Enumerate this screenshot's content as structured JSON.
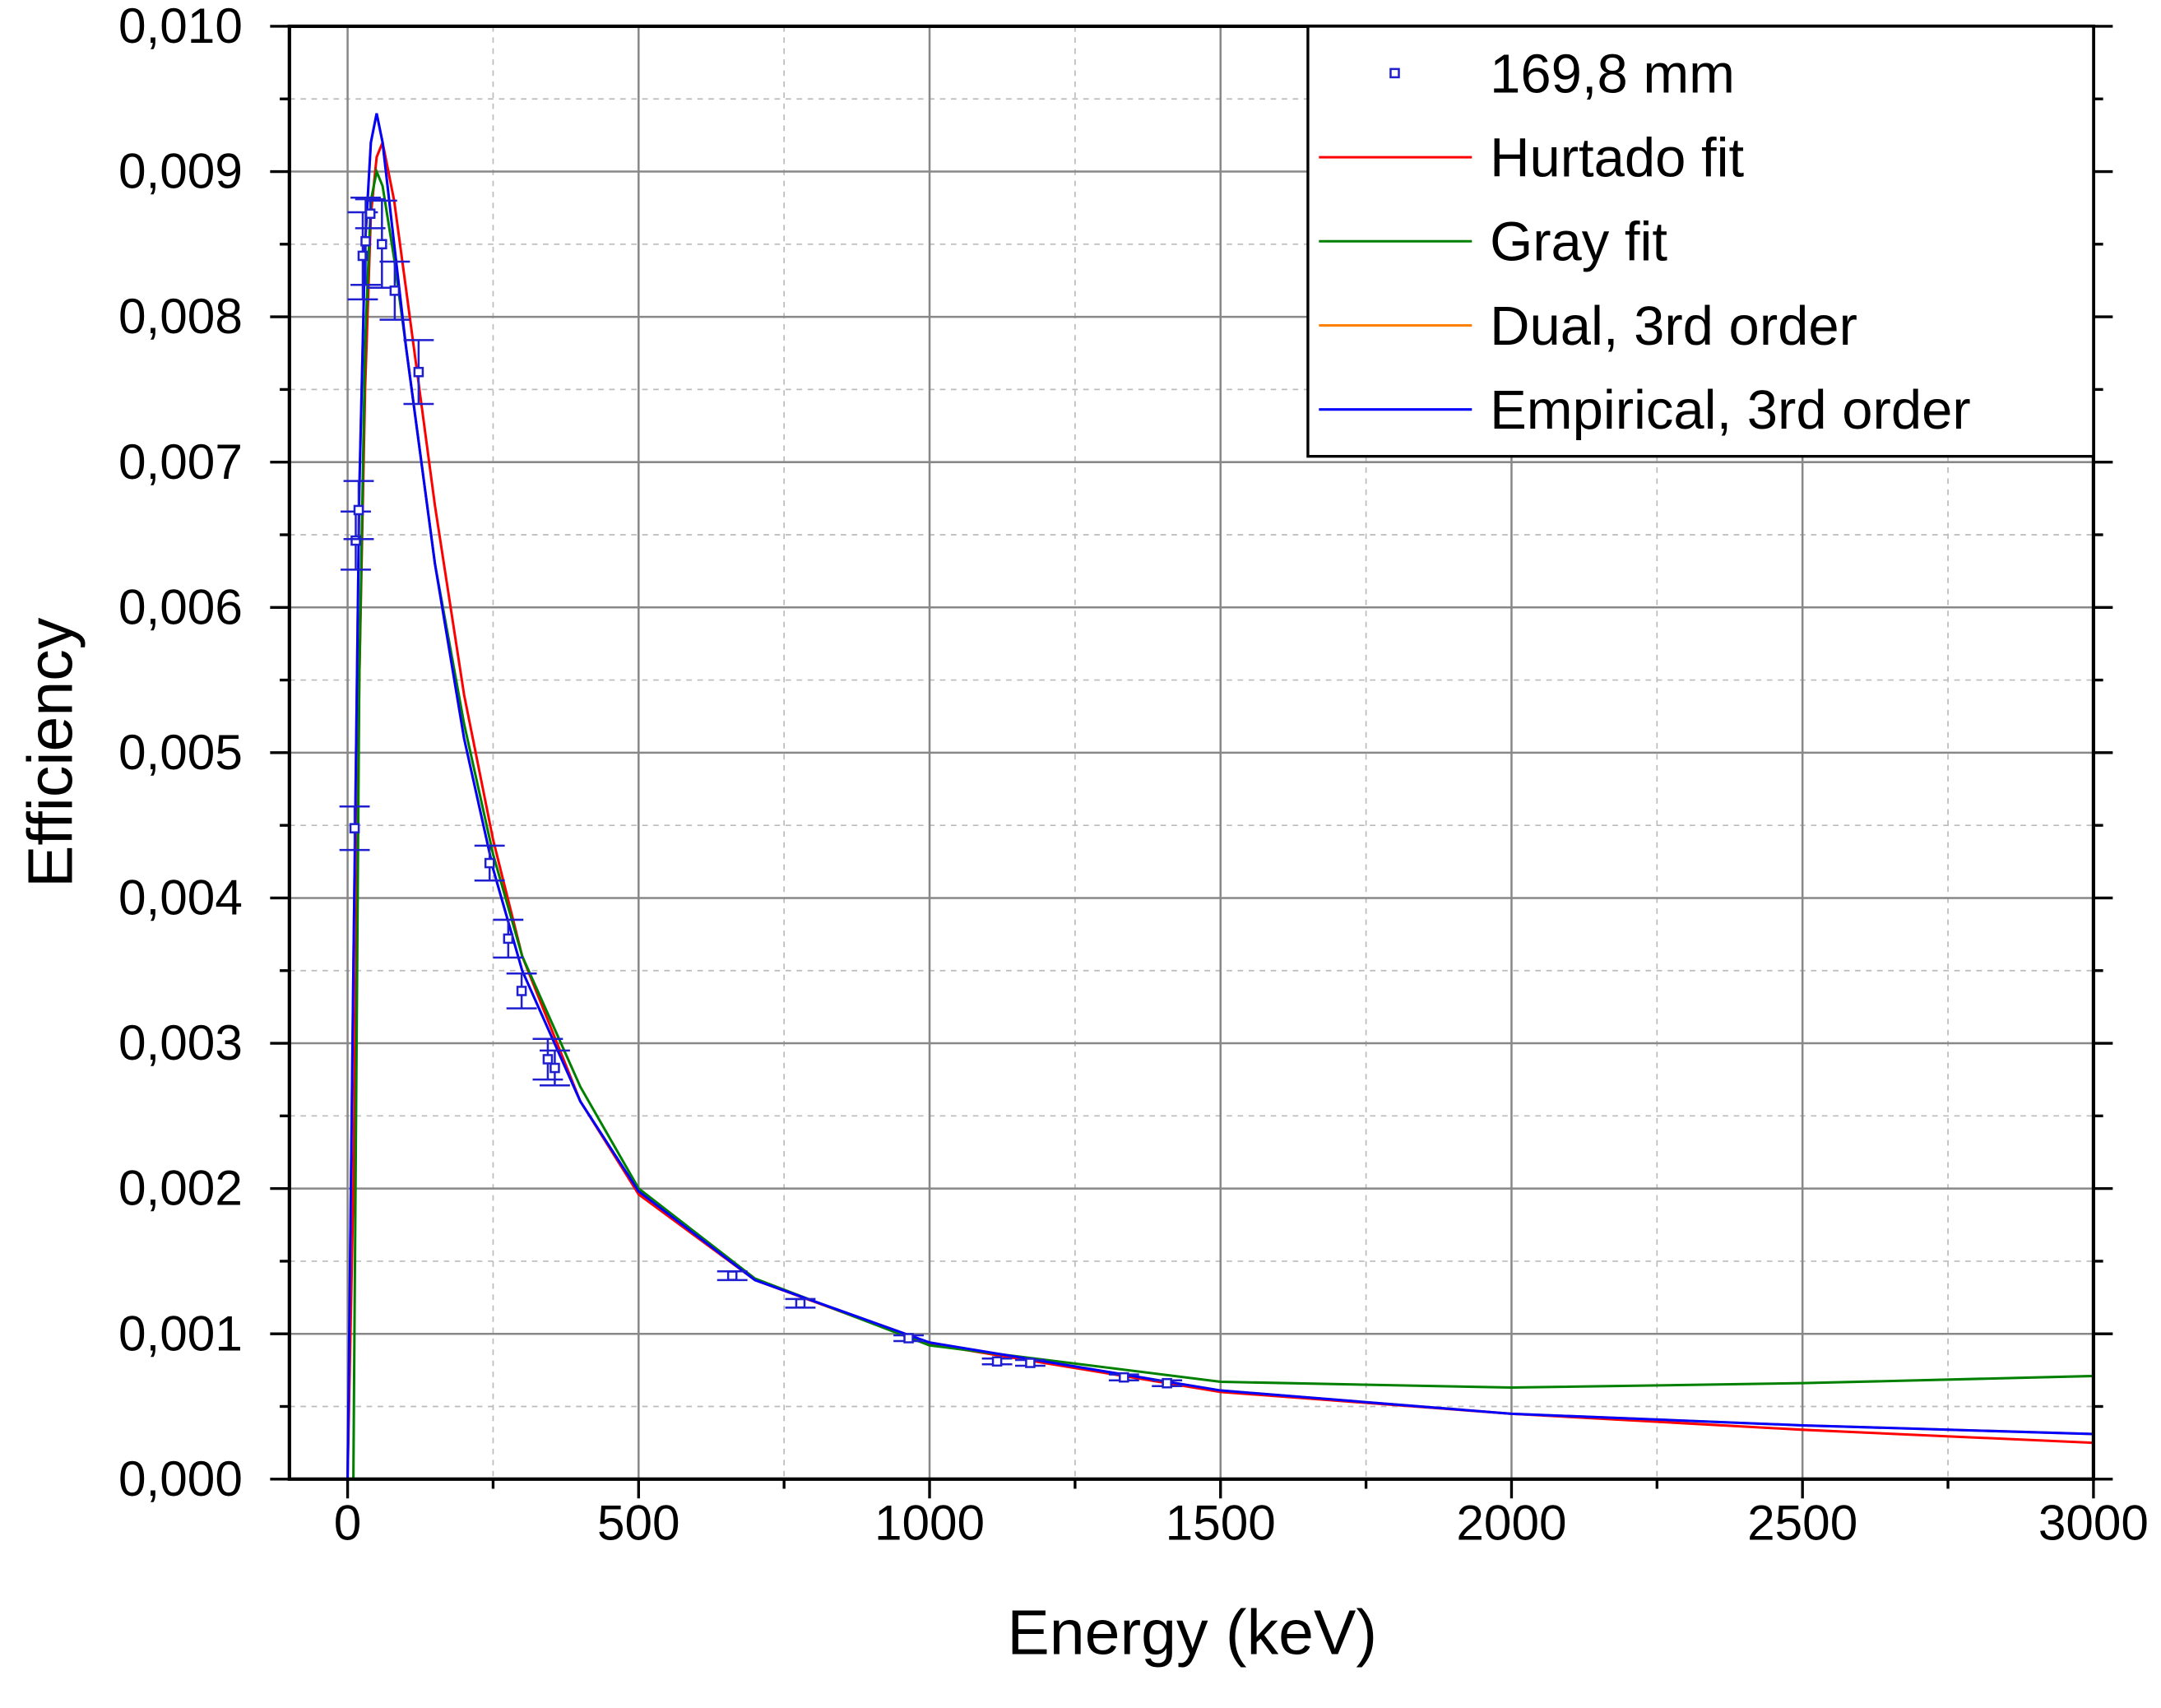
{
  "chart_data": {
    "type": "line",
    "x_label": "Energy (keV)",
    "y_label": "Efficiency",
    "xlim": [
      -100,
      3000
    ],
    "ylim": [
      0,
      0.01
    ],
    "xticks": [
      0,
      500,
      1000,
      1500,
      2000,
      2500,
      3000
    ],
    "yticks": [
      {
        "value": 0,
        "label": "0,000"
      },
      {
        "value": 0.001,
        "label": "0,001"
      },
      {
        "value": 0.002,
        "label": "0,002"
      },
      {
        "value": 0.003,
        "label": "0,003"
      },
      {
        "value": 0.004,
        "label": "0,004"
      },
      {
        "value": 0.005,
        "label": "0,005"
      },
      {
        "value": 0.006,
        "label": "0,006"
      },
      {
        "value": 0.007,
        "label": "0,007"
      },
      {
        "value": 0.008,
        "label": "0,008"
      },
      {
        "value": 0.009,
        "label": "0,009"
      },
      {
        "value": 0.01,
        "label": "0,010"
      }
    ],
    "grid": true,
    "minor_grid": true,
    "legend": "upper right",
    "points": {
      "name": "169,8 mm",
      "color": "#1f1fd0",
      "x": [
        12,
        14,
        19,
        26,
        31,
        39,
        59,
        81,
        122,
        244,
        276,
        299,
        344,
        356,
        661,
        778,
        964,
        1116,
        1173,
        1334,
        1408
      ],
      "values": [
        0.00448,
        0.00646,
        0.00667,
        0.00842,
        0.00852,
        0.00871,
        0.0085,
        0.00818,
        0.00762,
        0.00424,
        0.00372,
        0.00336,
        0.00289,
        0.00283,
        0.0014,
        0.00121,
        0.00097,
        0.00081,
        0.0008,
        0.0007,
        0.00066
      ],
      "errors": [
        0.00015,
        0.0002,
        0.0002,
        0.0003,
        0.0003,
        0.0001,
        0.0003,
        0.0002,
        0.00022,
        0.00012,
        0.00013,
        0.00012,
        0.00014,
        0.00012,
        3e-05,
        3e-05,
        2e-05,
        2e-05,
        2e-05,
        2e-05,
        2e-05
      ]
    },
    "x": [
      0,
      10,
      20,
      30,
      40,
      50,
      60,
      80,
      100,
      150,
      200,
      250,
      300,
      400,
      500,
      700,
      1000,
      1500,
      2000,
      2500,
      3000
    ],
    "series": [
      {
        "name": "Hurtado fit",
        "color": "#ff0000",
        "values": [
          0,
          0.002,
          0.0055,
          0.0075,
          0.0087,
          0.0091,
          0.0092,
          0.0088,
          0.0082,
          0.0067,
          0.0054,
          0.0044,
          0.0036,
          0.0026,
          0.00196,
          0.00137,
          0.00093,
          0.0006,
          0.00045,
          0.00034,
          0.00025
        ]
      },
      {
        "name": "Gray fit",
        "color": "#008000",
        "values": [
          0,
          0,
          0.0055,
          0.0078,
          0.0088,
          0.009,
          0.0089,
          0.0084,
          0.0078,
          0.0063,
          0.0052,
          0.0043,
          0.0036,
          0.0027,
          0.002,
          0.00138,
          0.00092,
          0.00067,
          0.00063,
          0.00066,
          0.00071
        ]
      },
      {
        "name": "Dual, 3rd order",
        "color": "#ff8000",
        "values": [
          0,
          0.0035,
          0.0068,
          0.0085,
          0.0092,
          0.0094,
          0.0092,
          0.0085,
          0.0078,
          0.0063,
          0.0051,
          0.0042,
          0.0035,
          0.0026,
          0.00198,
          0.00137,
          0.00094,
          0.00061,
          0.00045,
          0.00037,
          0.00031
        ]
      },
      {
        "name": "Empirical, 3rd order",
        "color": "#0000ff",
        "values": [
          0,
          0.0035,
          0.0068,
          0.0085,
          0.0092,
          0.0094,
          0.0092,
          0.0085,
          0.0078,
          0.0063,
          0.0051,
          0.0042,
          0.0035,
          0.0026,
          0.00198,
          0.00137,
          0.00094,
          0.00061,
          0.00045,
          0.00037,
          0.00031
        ]
      }
    ]
  }
}
